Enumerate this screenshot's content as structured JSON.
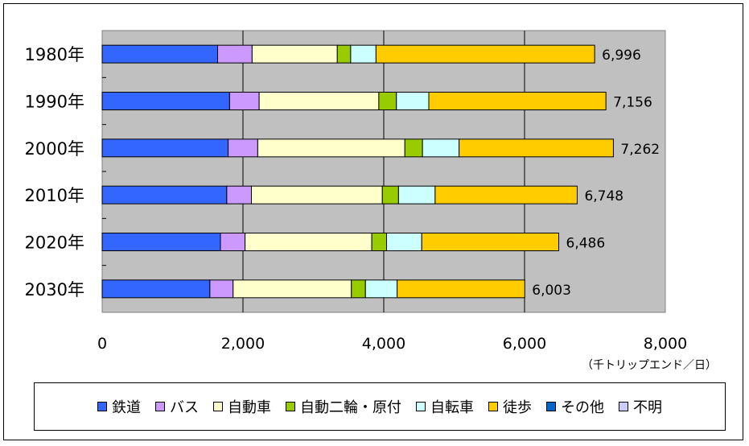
{
  "chart_data": {
    "type": "bar",
    "orientation": "horizontal",
    "stacked": true,
    "categories": [
      "1980年",
      "1990年",
      "2000年",
      "2010年",
      "2020年",
      "2030年"
    ],
    "series": [
      {
        "name": "鉄道",
        "color": "#3366ff",
        "values": [
          1640,
          1810,
          1790,
          1770,
          1680,
          1530
        ]
      },
      {
        "name": "バス",
        "color": "#cc99ff",
        "values": [
          490,
          420,
          420,
          350,
          350,
          330
        ]
      },
      {
        "name": "自動車",
        "color": "#ffffcc",
        "values": [
          1210,
          1700,
          2090,
          1860,
          1800,
          1680
        ]
      },
      {
        "name": "自動二輪・原付",
        "color": "#99cc00",
        "values": [
          190,
          250,
          250,
          230,
          210,
          200
        ]
      },
      {
        "name": "自転車",
        "color": "#ccffff",
        "values": [
          360,
          460,
          520,
          520,
          500,
          450
        ]
      },
      {
        "name": "徒歩",
        "color": "#ffcc00",
        "values": [
          3106,
          2516,
          2192,
          2018,
          1946,
          1813
        ]
      },
      {
        "name": "その他",
        "color": "#0066cc",
        "values": [
          0,
          0,
          0,
          0,
          0,
          0
        ]
      },
      {
        "name": "不明",
        "color": "#ccccff",
        "values": [
          0,
          0,
          0,
          0,
          0,
          0
        ]
      }
    ],
    "totals": [
      6996,
      7156,
      7262,
      6748,
      6486,
      6003
    ],
    "total_labels": [
      "6,996",
      "7,156",
      "7,262",
      "6,748",
      "6,486",
      "6,003"
    ],
    "xlim": [
      0,
      8000
    ],
    "x_ticks": [
      0,
      2000,
      4000,
      6000,
      8000
    ],
    "x_tick_labels": [
      "0",
      "2,000",
      "4,000",
      "6,000",
      "8,000"
    ],
    "unit_label": "（千トリップエンド／日）",
    "plot_background": "#c0c0c0",
    "grid": true,
    "legend_position": "bottom"
  }
}
